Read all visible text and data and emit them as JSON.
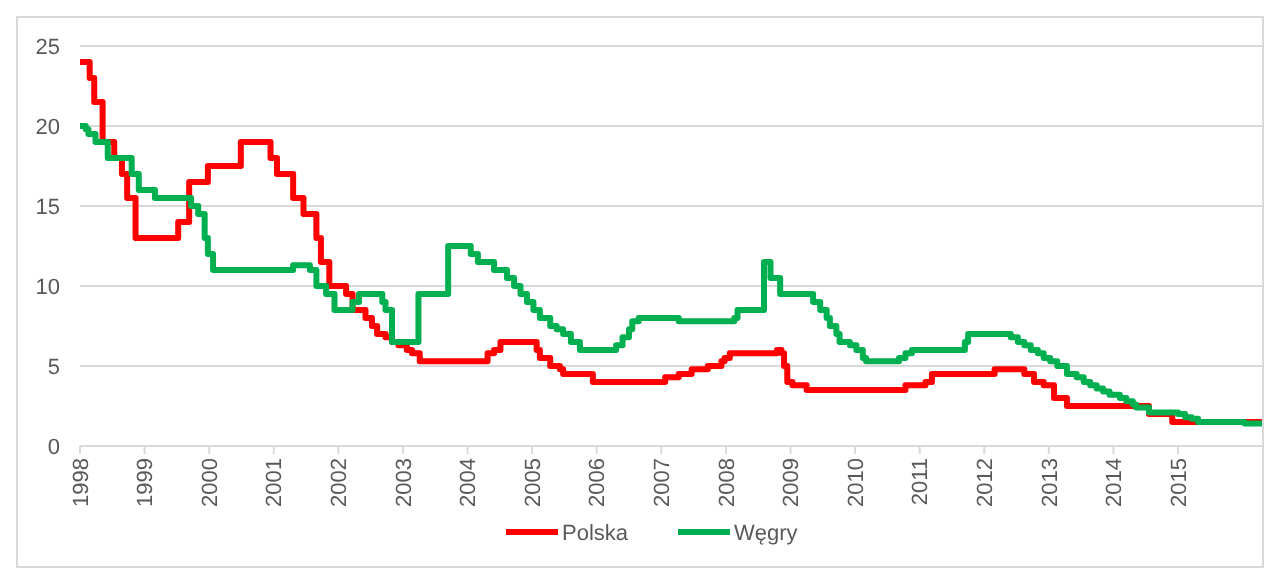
{
  "chart_data": {
    "type": "step",
    "xlim": [
      1998,
      2016.3
    ],
    "xticks": [
      1998,
      1999,
      2000,
      2001,
      2002,
      2003,
      2004,
      2005,
      2006,
      2007,
      2008,
      2009,
      2010,
      2011,
      2012,
      2013,
      2014,
      2015
    ],
    "ylim": [
      0,
      25
    ],
    "yticks": [
      0,
      5,
      10,
      15,
      20,
      25
    ],
    "grid": "y",
    "legend": "bottom",
    "line_style": "solid",
    "series": [
      {
        "name": "Polska",
        "color": "#ff0000",
        "x": [
          1998,
          1998.15,
          1998.22,
          1998.35,
          1998.53,
          1998.65,
          1998.73,
          1998.86,
          1999.52,
          1999.69,
          1999.98,
          2000.49,
          2000.95,
          2001.05,
          2001.3,
          2001.46,
          2001.66,
          2001.73,
          2001.86,
          2002.12,
          2002.22,
          2002.42,
          2002.52,
          2002.6,
          2002.73,
          2002.83,
          2002.93,
          2003.06,
          2003.14,
          2003.26,
          2004.31,
          2004.41,
          2004.51,
          2005.07,
          2005.12,
          2005.28,
          2005.43,
          2005.48,
          2005.94,
          2007.06,
          2007.27,
          2007.47,
          2007.72,
          2007.93,
          2007.98,
          2008.06,
          2008.79,
          2008.86,
          2008.9,
          2008.95,
          2009.03,
          2009.25,
          2010.78,
          2011.09,
          2011.19,
          2012.16,
          2012.62,
          2012.77,
          2012.92,
          2013.08,
          2013.28,
          2014.55,
          2014.91,
          2016.3
        ],
        "values": [
          24,
          23,
          21.5,
          19,
          18,
          17,
          15.5,
          13,
          14,
          16.5,
          17.5,
          19,
          18,
          17,
          15.5,
          14.5,
          13,
          11.5,
          10,
          9.5,
          8.5,
          8,
          7.5,
          7,
          6.8,
          6.5,
          6.3,
          6,
          5.8,
          5.3,
          5.8,
          6,
          6.5,
          6,
          5.5,
          5,
          4.8,
          4.5,
          4,
          4.3,
          4.5,
          4.8,
          5,
          5.3,
          5.5,
          5.8,
          6,
          5.8,
          5,
          4,
          3.8,
          3.5,
          3.8,
          4,
          4.5,
          4.8,
          4.5,
          4,
          3.8,
          3,
          2.5,
          2,
          1.5,
          1.5
        ]
      },
      {
        "name": "Węgry",
        "color": "#00b050",
        "x": [
          1998,
          1998.09,
          1998.13,
          1998.24,
          1998.43,
          1998.8,
          1998.91,
          1999.16,
          1999.72,
          1999.83,
          1999.93,
          1999.98,
          2000.06,
          2001.3,
          2001.56,
          2001.66,
          2001.81,
          2001.94,
          2002.22,
          2002.32,
          2002.68,
          2002.73,
          2002.83,
          2003.24,
          2003.7,
          2004.05,
          2004.16,
          2004.41,
          2004.61,
          2004.72,
          2004.82,
          2004.92,
          2005.02,
          2005.12,
          2005.28,
          2005.38,
          2005.48,
          2005.6,
          2005.74,
          2006.3,
          2006.4,
          2006.5,
          2006.55,
          2006.65,
          2007.27,
          2007.98,
          2008.13,
          2008.18,
          2008.59,
          2008.69,
          2008.84,
          2009.35,
          2009.46,
          2009.56,
          2009.61,
          2009.71,
          2009.76,
          2009.92,
          2010.02,
          2010.12,
          2010.17,
          2010.68,
          2010.78,
          2010.88,
          2011.7,
          2011.75,
          2012.41,
          2012.52,
          2012.62,
          2012.72,
          2012.83,
          2012.92,
          2013.02,
          2013.13,
          2013.28,
          2013.43,
          2013.54,
          2013.64,
          2013.74,
          2013.84,
          2013.94,
          2014.1,
          2014.2,
          2014.3,
          2014.35,
          2014.55,
          2015,
          2015.11,
          2015.21,
          2015.31,
          2016.03,
          2016.3
        ],
        "values": [
          20,
          19.8,
          19.5,
          19,
          18,
          17,
          16,
          15.5,
          15,
          14.5,
          13,
          12,
          11,
          11.3,
          11,
          10,
          9.5,
          8.5,
          9,
          9.5,
          9,
          8.5,
          6.5,
          9.5,
          12.5,
          12,
          11.5,
          11,
          10.5,
          10,
          9.5,
          9,
          8.5,
          8,
          7.5,
          7.3,
          7,
          6.5,
          6,
          6.3,
          6.8,
          7.3,
          7.8,
          8,
          7.8,
          7.8,
          8,
          8.5,
          11.5,
          10.5,
          9.5,
          9,
          8.5,
          8,
          7.5,
          7,
          6.5,
          6.3,
          6,
          5.5,
          5.3,
          5.5,
          5.8,
          6,
          6.5,
          7,
          6.8,
          6.5,
          6.3,
          6,
          5.8,
          5.5,
          5.3,
          5,
          4.5,
          4.3,
          4,
          3.8,
          3.6,
          3.4,
          3.2,
          3,
          2.8,
          2.6,
          2.4,
          2.1,
          2,
          1.8,
          1.7,
          1.5,
          1.4,
          1.4
        ]
      }
    ]
  }
}
